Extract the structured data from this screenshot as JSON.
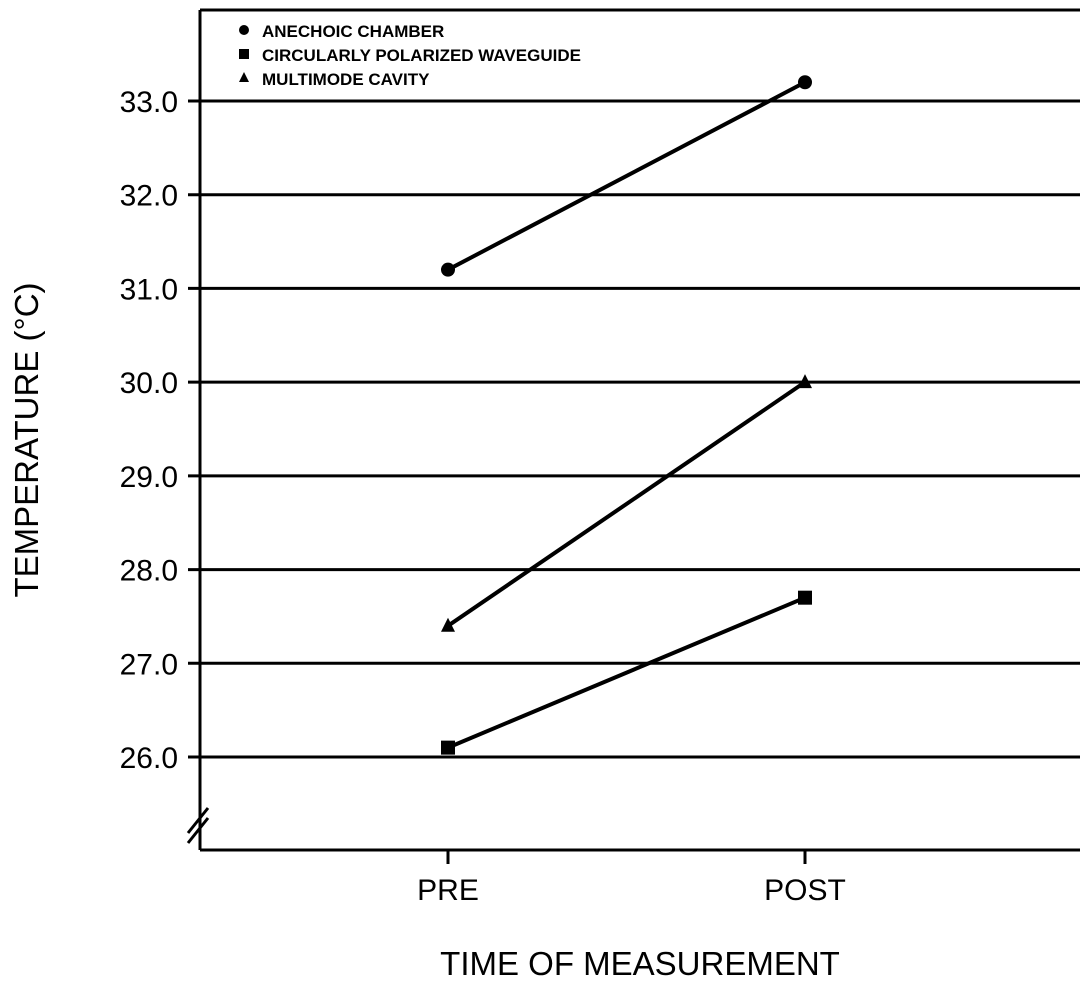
{
  "chart_data": {
    "type": "line",
    "title": "",
    "xlabel": "TIME OF MEASUREMENT",
    "ylabel": "TEMPERATURE (°C)",
    "categories": [
      "PRE",
      "POST"
    ],
    "ylim": [
      25.0,
      34.0
    ],
    "yticks": [
      "26.0",
      "27.0",
      "28.0",
      "29.0",
      "30.0",
      "31.0",
      "32.0",
      "33.0"
    ],
    "ytick_values": [
      26.0,
      27.0,
      28.0,
      29.0,
      30.0,
      31.0,
      32.0,
      33.0
    ],
    "axis_break": true,
    "grid": true,
    "legend_position": "top-left",
    "series": [
      {
        "name": "ANECHOIC CHAMBER",
        "marker": "circle",
        "values": [
          31.2,
          33.2
        ]
      },
      {
        "name": "CIRCULARLY POLARIZED WAVEGUIDE",
        "marker": "square",
        "values": [
          26.1,
          27.7
        ]
      },
      {
        "name": "MULTIMODE CAVITY",
        "marker": "triangle",
        "values": [
          27.4,
          30.0
        ]
      }
    ],
    "color": "#000000"
  }
}
